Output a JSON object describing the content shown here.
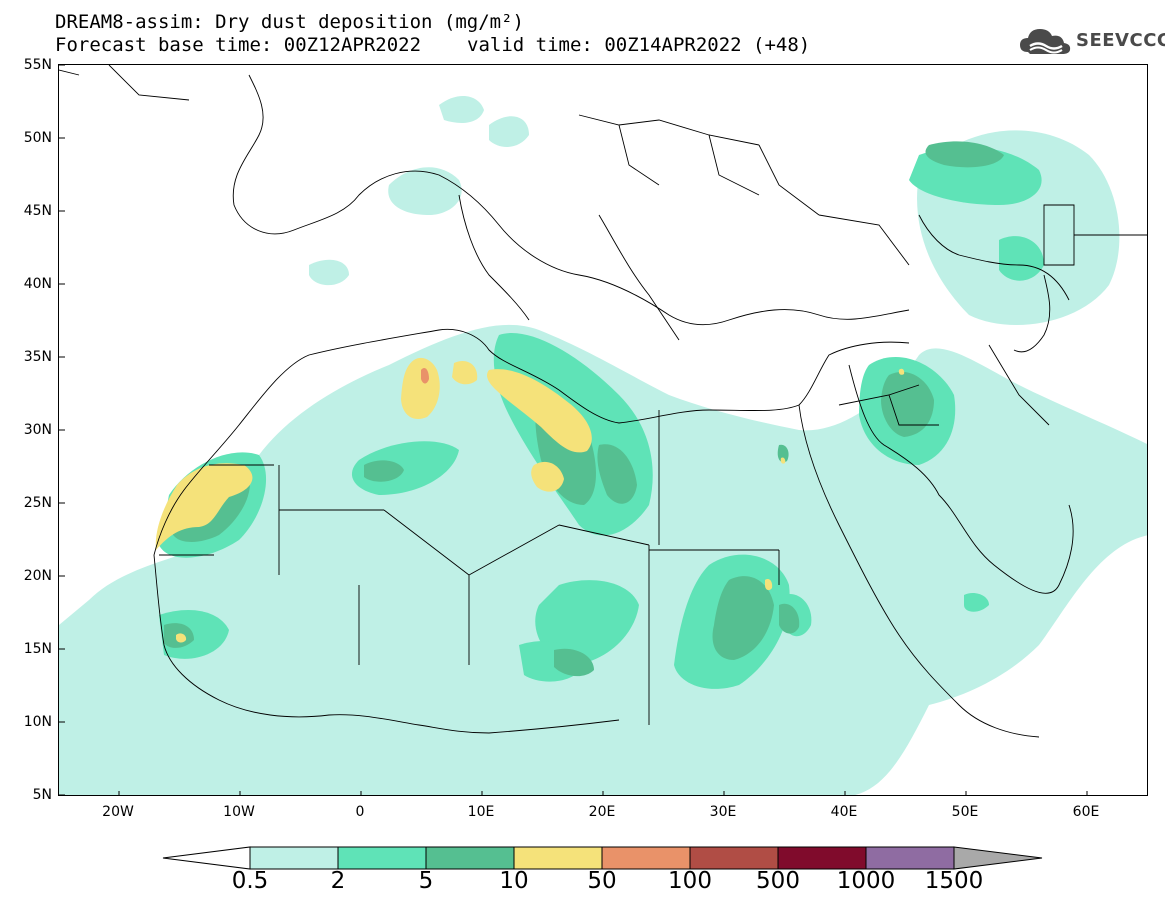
{
  "header": {
    "title_line1": "DREAM8-assim: Dry dust deposition (mg/m²)",
    "base_time": "Forecast base time: 00Z12APR2022",
    "valid_time": "valid time: 00Z14APR2022 (+48)"
  },
  "logo": {
    "text": "SEEVCCC",
    "icon": "cloud-logo-icon"
  },
  "map": {
    "lon_range": [
      -25,
      65
    ],
    "lat_range": [
      5,
      55
    ],
    "lat_labels": [
      "55N",
      "50N",
      "45N",
      "40N",
      "35N",
      "30N",
      "25N",
      "20N",
      "15N",
      "10N",
      "5N"
    ],
    "lon_labels": [
      "20W",
      "10W",
      "0",
      "10E",
      "20E",
      "30E",
      "40E",
      "50E",
      "60E"
    ]
  },
  "colorbar": {
    "levels": [
      "0.5",
      "2",
      "5",
      "10",
      "50",
      "100",
      "500",
      "1000",
      "1500"
    ],
    "colors": [
      "#ffffff",
      "#bff0e6",
      "#5fe3b7",
      "#55bf91",
      "#f5e27a",
      "#e99269",
      "#b04d45",
      "#800b2c",
      "#8f6ca2",
      "#a9a9a9"
    ]
  }
}
